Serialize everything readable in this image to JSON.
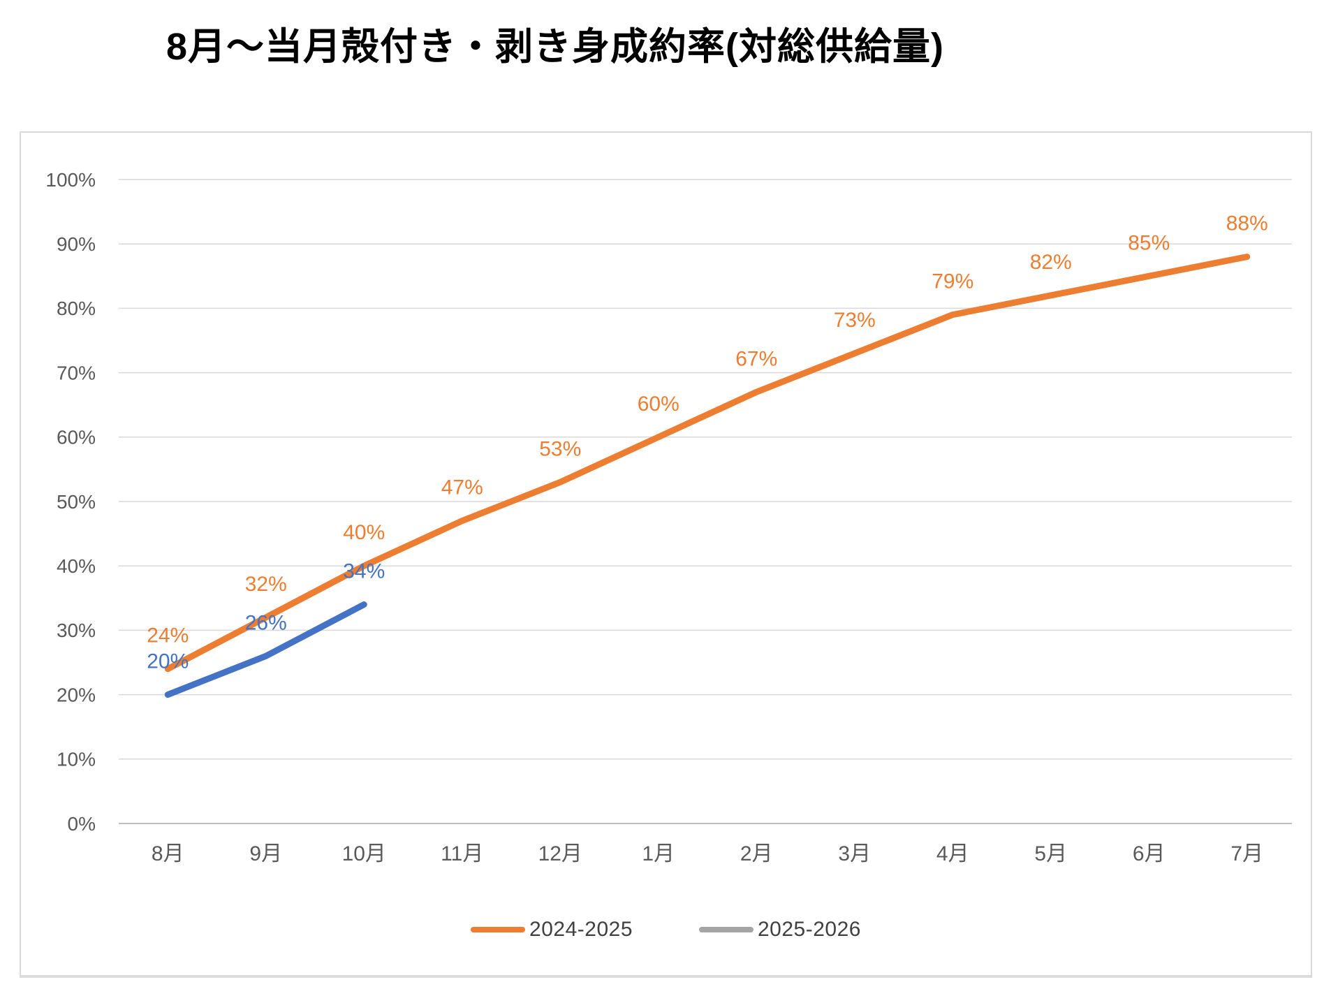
{
  "chart_data": {
    "type": "line",
    "title": "8月〜当月殻付き・剥き身成約率(対総供給量)",
    "categories": [
      "8月",
      "9月",
      "10月",
      "11月",
      "12月",
      "1月",
      "2月",
      "3月",
      "4月",
      "5月",
      "6月",
      "7月"
    ],
    "series": [
      {
        "name": "2024-2025",
        "line_color": "#ED7D31",
        "legend_color": "#ED7D31",
        "values": [
          24,
          32,
          40,
          47,
          53,
          60,
          67,
          73,
          79,
          82,
          85,
          88
        ]
      },
      {
        "name": "2025-2026",
        "line_color": "#4472C4",
        "legend_color": "#A5A5A5",
        "values": [
          20,
          26,
          34
        ]
      }
    ],
    "ylim": [
      0,
      100
    ],
    "ytick_step": 10,
    "tick_suffix": "%",
    "grid": true,
    "legend_position": "bottom",
    "data_labels": true,
    "axis_text_color": "#595959",
    "gridline_color": "#D9D9D9",
    "baseline_color": "#BFBFBF"
  }
}
